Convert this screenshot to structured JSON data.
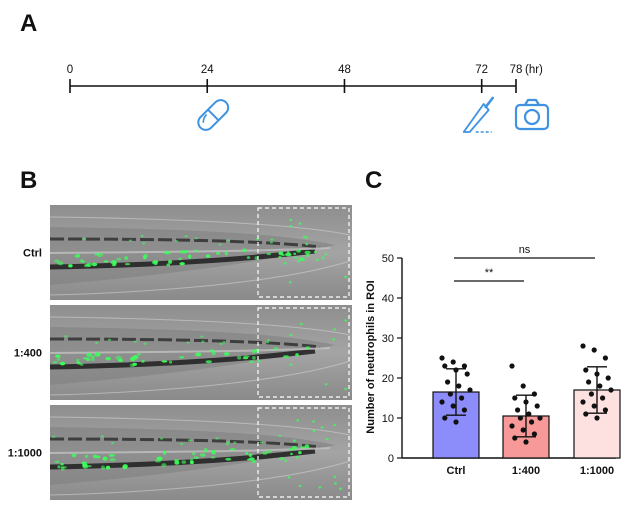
{
  "panels": {
    "a": "A",
    "b": "B",
    "c": "C"
  },
  "timeline": {
    "unit": "(hr)",
    "ticks": [
      {
        "label": "0",
        "value": 0
      },
      {
        "label": "24",
        "value": 24
      },
      {
        "label": "48",
        "value": 48
      },
      {
        "label": "72",
        "value": 72
      },
      {
        "label": "78",
        "value": 78
      }
    ],
    "events": [
      {
        "icon": "capsule-icon",
        "at": 24
      },
      {
        "icon": "scalpel-icon",
        "at": 72
      },
      {
        "icon": "camera-icon",
        "at": 78
      }
    ],
    "icon_color": "#3f93e0"
  },
  "image_rows": [
    {
      "label": "Ctrl"
    },
    {
      "label": "1:400"
    },
    {
      "label": "1:1000"
    }
  ],
  "chart_data": {
    "type": "bar",
    "categories": [
      "Ctrl",
      "1:400",
      "1:1000"
    ],
    "values": [
      16.5,
      10.5,
      17.0
    ],
    "errors": [
      5.8,
      5.2,
      5.8
    ],
    "colors": [
      "#8c8cfb",
      "#f79999",
      "#fde0e0"
    ],
    "ylabel": "Number of neutrophils in ROI",
    "ylim": [
      0,
      50
    ],
    "yticks": [
      0,
      10,
      20,
      30,
      40,
      50
    ],
    "points": [
      [
        25,
        24,
        23,
        23,
        22,
        21,
        19,
        18,
        17,
        16,
        15,
        14,
        13,
        12,
        10,
        9
      ],
      [
        23,
        18,
        16,
        15,
        14,
        13,
        12,
        11,
        10,
        10,
        9,
        8,
        7,
        6,
        5,
        4
      ],
      [
        28,
        27,
        25,
        22,
        21,
        20,
        19,
        18,
        17,
        16,
        15,
        14,
        13,
        12,
        11,
        10
      ]
    ],
    "significance": [
      {
        "from": 0,
        "to": 1,
        "label": "**"
      },
      {
        "from": 0,
        "to": 2,
        "label": "ns"
      }
    ]
  }
}
